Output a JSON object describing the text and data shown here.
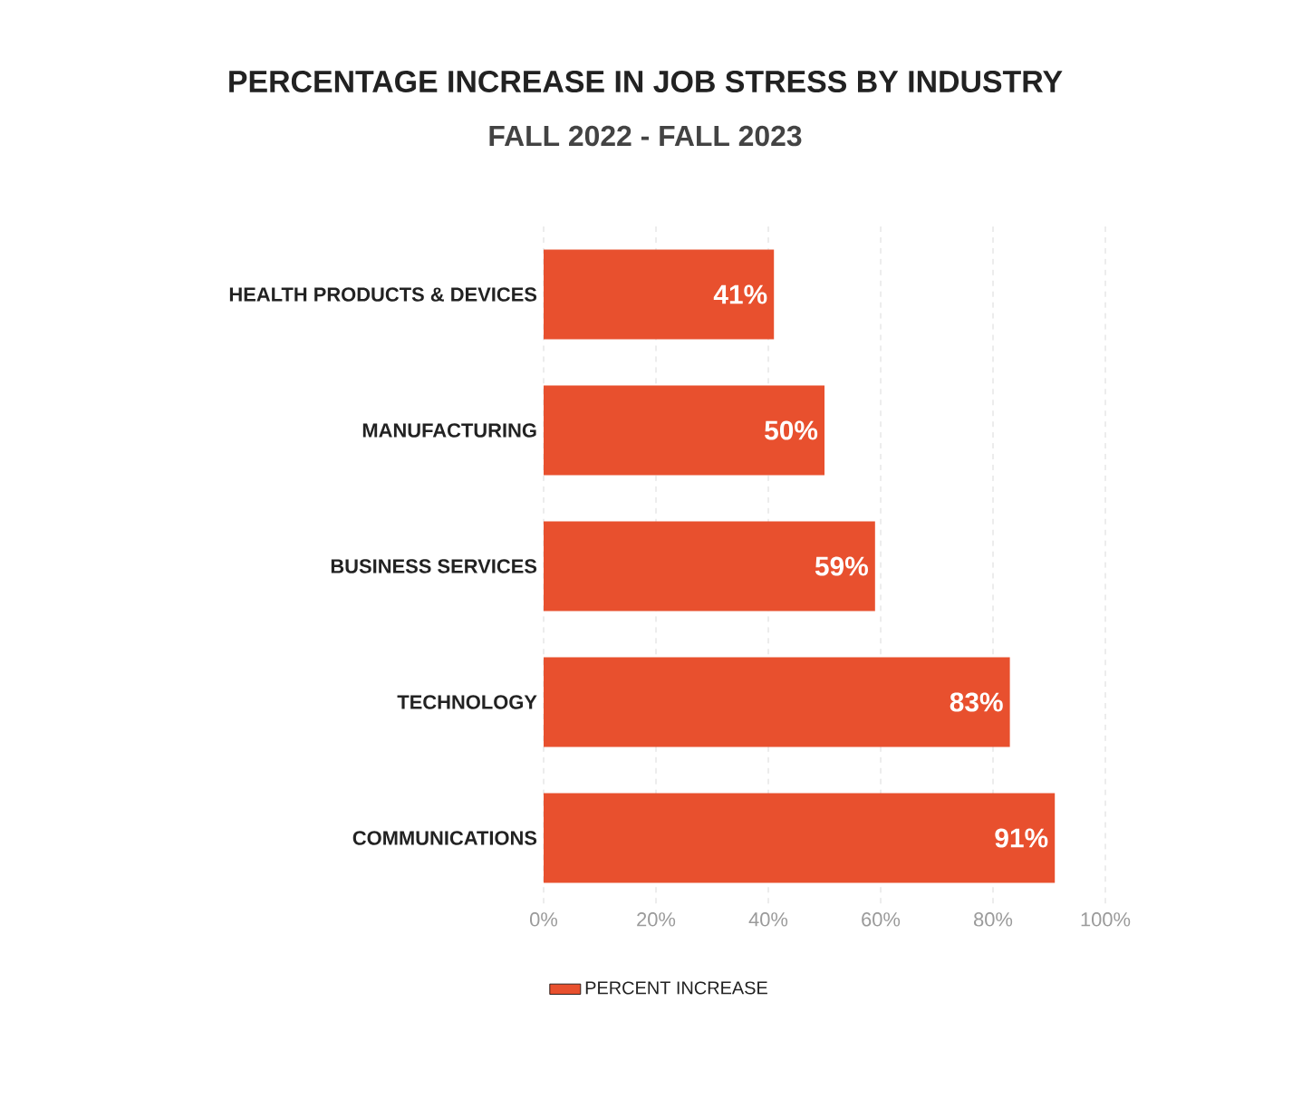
{
  "chart_data": {
    "type": "bar",
    "orientation": "horizontal",
    "title": "PERCENTAGE INCREASE IN JOB STRESS BY INDUSTRY",
    "subtitle": "FALL 2022 - FALL 2023",
    "categories": [
      "HEALTH PRODUCTS & DEVICES",
      "MANUFACTURING",
      "BUSINESS SERVICES",
      "TECHNOLOGY",
      "COMMUNICATIONS"
    ],
    "series": [
      {
        "name": "PERCENT INCREASE",
        "color": "#e8502e",
        "values": [
          41,
          50,
          59,
          83,
          91
        ],
        "value_labels": [
          "41%",
          "50%",
          "59%",
          "83%",
          "91%"
        ]
      }
    ],
    "xlim": [
      0,
      100
    ],
    "xticks": [
      {
        "value": 0,
        "label": "0%"
      },
      {
        "value": 20,
        "label": "20%"
      },
      {
        "value": 40,
        "label": "40%"
      },
      {
        "value": 60,
        "label": "60%"
      },
      {
        "value": 80,
        "label": "80%"
      },
      {
        "value": 100,
        "label": "100%"
      }
    ],
    "grid": "x",
    "legend": "bottom"
  }
}
